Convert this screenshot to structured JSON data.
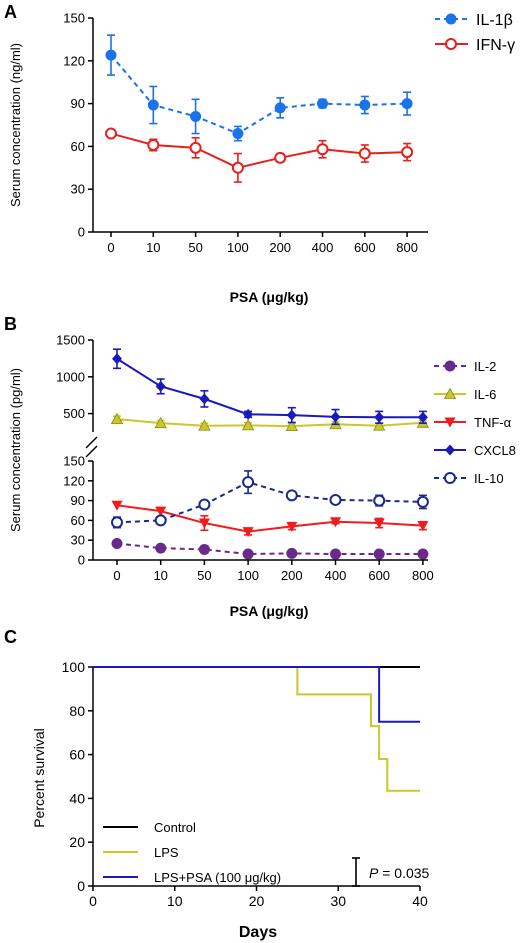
{
  "chart_data": [
    {
      "panel": "A",
      "type": "line",
      "categories": [
        "0",
        "10",
        "50",
        "100",
        "200",
        "400",
        "600",
        "800"
      ],
      "xlabel": "PSA (μg/kg)",
      "ylabel": "Serum concentration (ng/ml)",
      "ylim": [
        0,
        150
      ],
      "yticks": [
        "0",
        "30",
        "60",
        "90",
        "120",
        "150"
      ],
      "legend_position": "top-right",
      "series": [
        {
          "name": "IL-1β",
          "color": "#1a73e8",
          "marker": "filled-circle",
          "dashed": true,
          "values": [
            124,
            89,
            81,
            69,
            87,
            90,
            89,
            90
          ],
          "errors": [
            14,
            13,
            12,
            5,
            7,
            3,
            6,
            8
          ]
        },
        {
          "name": "IFN-γ",
          "color": "#e8201a",
          "marker": "open-circle",
          "dashed": false,
          "values": [
            69,
            61,
            59,
            45,
            52,
            58,
            55,
            56
          ],
          "errors": [
            0,
            4,
            7,
            10,
            3,
            6,
            6,
            6
          ]
        }
      ]
    },
    {
      "panel": "B",
      "type": "line",
      "categories": [
        "0",
        "10",
        "50",
        "100",
        "200",
        "400",
        "600",
        "800"
      ],
      "xlabel": "PSA (μg/kg)",
      "ylabel": "Serum concentration (pg/ml)",
      "y_lower_range": [
        0,
        150
      ],
      "y_upper_range": [
        250,
        1500
      ],
      "yticks_lower": [
        "0",
        "30",
        "60",
        "90",
        "120",
        "150"
      ],
      "yticks_upper": [
        "500",
        "1000",
        "1500"
      ],
      "axis_break": true,
      "legend_position": "right",
      "series": [
        {
          "name": "IL-2",
          "color": "#6a2a8c",
          "marker": "filled-circle",
          "dashed": true,
          "values": [
            25,
            18,
            16,
            9,
            10,
            9,
            9,
            9
          ],
          "errors": [
            0,
            0,
            0,
            0,
            0,
            0,
            0,
            0
          ]
        },
        {
          "name": "IL-6",
          "color": "#c8c82a",
          "marker": "triangle-up",
          "dashed": false,
          "values": [
            425,
            370,
            335,
            340,
            330,
            355,
            335,
            375
          ],
          "errors": [
            40,
            35,
            35,
            35,
            35,
            35,
            35,
            35
          ]
        },
        {
          "name": "TNF-α",
          "color": "#f21a1a",
          "marker": "triangle-down",
          "dashed": false,
          "values": [
            83,
            74,
            56,
            43,
            51,
            58,
            56,
            52
          ],
          "errors": [
            0,
            0,
            11,
            5,
            5,
            3,
            7,
            6
          ]
        },
        {
          "name": "CXCL8",
          "color": "#1a1ab8",
          "marker": "diamond",
          "dashed": false,
          "values": [
            1245,
            870,
            700,
            490,
            480,
            455,
            450,
            450
          ],
          "errors": [
            130,
            100,
            110,
            40,
            100,
            100,
            80,
            80
          ]
        },
        {
          "name": "IL-10",
          "color": "#1a2a8c",
          "marker": "open-circle",
          "dashed": true,
          "values": [
            57,
            60,
            84,
            118,
            98,
            91,
            90,
            88
          ],
          "errors": [
            8,
            3,
            5,
            17,
            3,
            3,
            8,
            10
          ]
        }
      ]
    },
    {
      "panel": "C",
      "type": "line",
      "subtype": "step",
      "xlabel": "Days",
      "ylabel": "Percent survival",
      "xlim": [
        0,
        40
      ],
      "ylim": [
        0,
        100
      ],
      "xticks": [
        "0",
        "10",
        "20",
        "30",
        "40"
      ],
      "yticks": [
        "0",
        "20",
        "40",
        "60",
        "80",
        "100"
      ],
      "legend_position": "bottom-left",
      "series": [
        {
          "name": "Control",
          "color": "#000000",
          "x": [
            0,
            40
          ],
          "y": [
            100,
            100
          ]
        },
        {
          "name": "LPS",
          "color": "#c8c82a",
          "x": [
            0,
            25,
            25,
            34,
            34,
            35,
            35,
            36,
            36,
            40
          ],
          "y": [
            100,
            100,
            87.5,
            87.5,
            73,
            73,
            58,
            58,
            43.5,
            43.5
          ]
        },
        {
          "name": "LPS+PSA (100 μg/kg)",
          "color": "#1a1ab8",
          "x": [
            0,
            35,
            35,
            40
          ],
          "y": [
            100,
            100,
            75,
            75
          ]
        }
      ],
      "annotation": {
        "p_label": "P",
        "p_value": " = 0.035"
      }
    }
  ]
}
